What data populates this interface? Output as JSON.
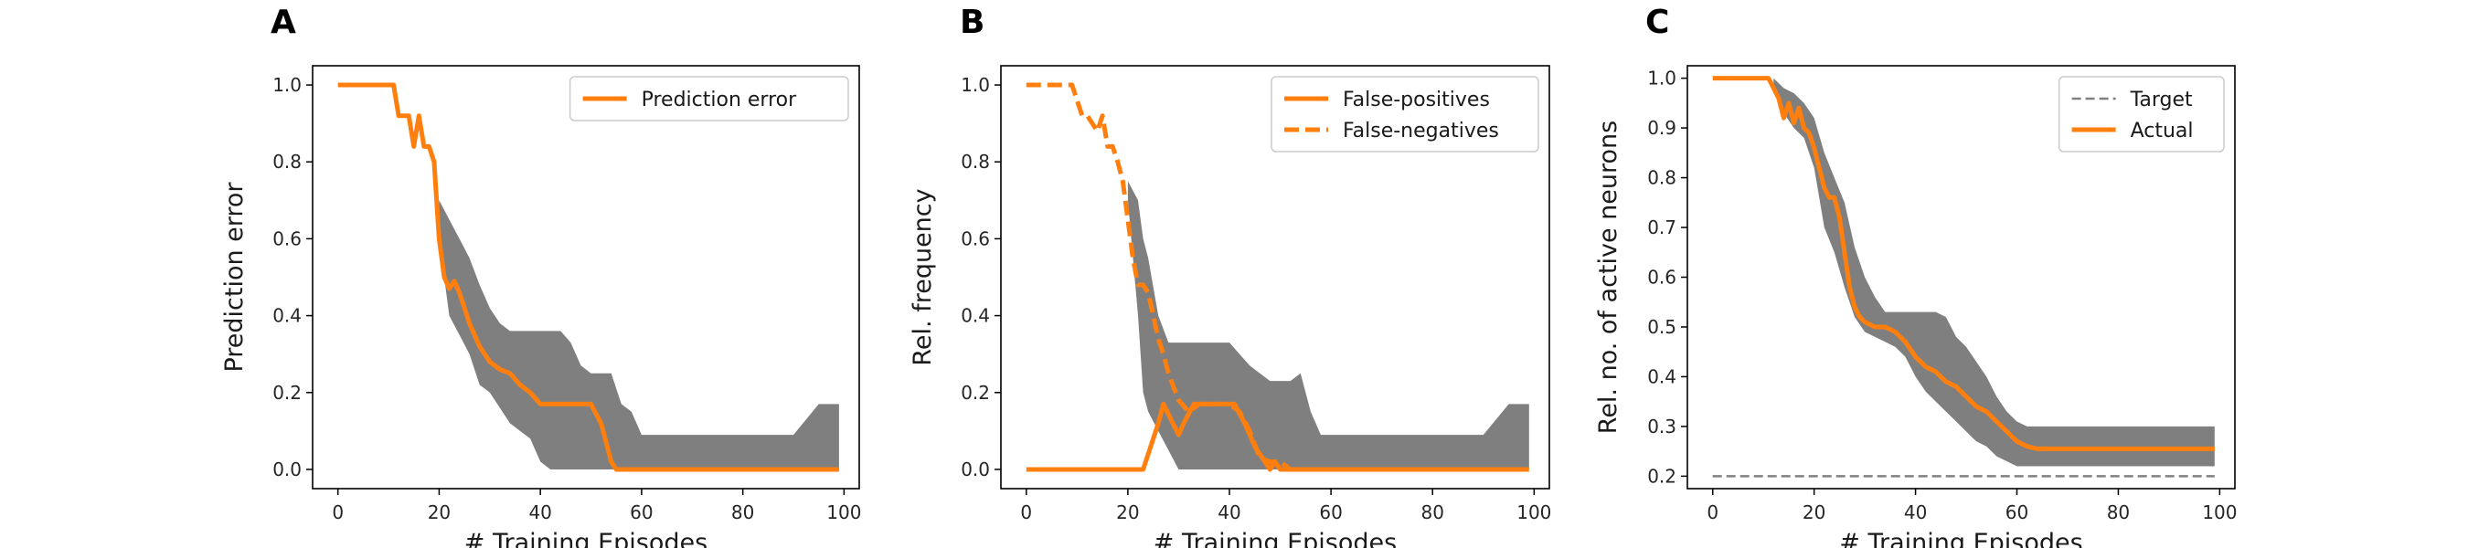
{
  "chart_data": [
    {
      "type": "line",
      "panel": "A",
      "xlabel": "# Training Episodes",
      "ylabel": "Prediction error",
      "xlim": [
        -5,
        103
      ],
      "ylim": [
        -0.05,
        1.05
      ],
      "xticks": [
        0,
        20,
        40,
        60,
        80,
        100
      ],
      "yticks": [
        0.0,
        0.2,
        0.4,
        0.6,
        0.8,
        1.0
      ],
      "ytick_labels": [
        "0.0",
        "0.2",
        "0.4",
        "0.6",
        "0.8",
        "1.0"
      ],
      "grid": false,
      "legend": "top-right",
      "band": {
        "x": [
          20,
          22,
          24,
          26,
          28,
          30,
          32,
          34,
          36,
          38,
          40,
          42,
          44,
          46,
          48,
          50,
          52,
          54,
          56,
          58,
          60,
          65,
          70,
          75,
          80,
          85,
          90,
          95,
          99
        ],
        "lower": [
          0.6,
          0.4,
          0.35,
          0.3,
          0.22,
          0.2,
          0.16,
          0.12,
          0.1,
          0.08,
          0.02,
          0.0,
          0.0,
          0.0,
          0.0,
          0.0,
          0.0,
          0.0,
          0.0,
          0.0,
          0.0,
          0.0,
          0.0,
          0.0,
          0.0,
          0.0,
          0.0,
          0.0,
          0.0
        ],
        "upper": [
          0.7,
          0.65,
          0.6,
          0.55,
          0.48,
          0.42,
          0.38,
          0.36,
          0.36,
          0.36,
          0.36,
          0.36,
          0.36,
          0.33,
          0.27,
          0.25,
          0.25,
          0.25,
          0.17,
          0.15,
          0.09,
          0.09,
          0.09,
          0.09,
          0.09,
          0.09,
          0.09,
          0.17,
          0.17
        ]
      },
      "series": [
        {
          "name": "Prediction error",
          "style": "solid",
          "x": [
            0,
            4,
            8,
            11,
            12,
            14,
            15,
            16,
            17,
            18,
            19,
            20,
            21,
            22,
            23,
            24,
            25,
            26,
            27,
            28,
            29,
            30,
            32,
            34,
            36,
            38,
            40,
            42,
            44,
            46,
            48,
            50,
            52,
            54,
            55,
            60,
            70,
            80,
            90,
            99
          ],
          "y": [
            1.0,
            1.0,
            1.0,
            1.0,
            0.92,
            0.92,
            0.84,
            0.92,
            0.84,
            0.84,
            0.8,
            0.6,
            0.5,
            0.47,
            0.49,
            0.46,
            0.42,
            0.38,
            0.35,
            0.32,
            0.3,
            0.28,
            0.26,
            0.25,
            0.22,
            0.2,
            0.17,
            0.17,
            0.17,
            0.17,
            0.17,
            0.17,
            0.12,
            0.02,
            0.0,
            0.0,
            0.0,
            0.0,
            0.0,
            0.0
          ]
        }
      ]
    },
    {
      "type": "line",
      "panel": "B",
      "xlabel": "# Training Episodes",
      "ylabel": "Rel. frequency",
      "xlim": [
        -5,
        103
      ],
      "ylim": [
        -0.05,
        1.05
      ],
      "xticks": [
        0,
        20,
        40,
        60,
        80,
        100
      ],
      "yticks": [
        0.0,
        0.2,
        0.4,
        0.6,
        0.8,
        1.0
      ],
      "ytick_labels": [
        "0.0",
        "0.2",
        "0.4",
        "0.6",
        "0.8",
        "1.0"
      ],
      "grid": false,
      "legend": "top-right",
      "band": {
        "x": [
          20,
          22,
          23,
          24,
          26,
          28,
          30,
          32,
          34,
          36,
          38,
          40,
          42,
          44,
          46,
          48,
          50,
          52,
          54,
          56,
          58,
          60,
          70,
          80,
          90,
          95,
          99
        ],
        "lower": [
          0.7,
          0.4,
          0.2,
          0.15,
          0.1,
          0.05,
          0.0,
          0.0,
          0.0,
          0.0,
          0.0,
          0.0,
          0.0,
          0.0,
          0.0,
          0.0,
          0.0,
          0.0,
          0.0,
          0.0,
          0.0,
          0.0,
          0.0,
          0.0,
          0.0,
          0.0,
          0.0
        ],
        "upper": [
          0.75,
          0.7,
          0.6,
          0.55,
          0.4,
          0.33,
          0.33,
          0.33,
          0.33,
          0.33,
          0.33,
          0.33,
          0.3,
          0.27,
          0.25,
          0.23,
          0.23,
          0.23,
          0.25,
          0.15,
          0.09,
          0.09,
          0.09,
          0.09,
          0.09,
          0.17,
          0.17
        ]
      },
      "series": [
        {
          "name": "False-positives",
          "style": "solid",
          "x": [
            0,
            10,
            20,
            23,
            25,
            26,
            27,
            30,
            31,
            33,
            35,
            37,
            39,
            41,
            43,
            45,
            46,
            48,
            49,
            50,
            60,
            80,
            99
          ],
          "y": [
            0.0,
            0.0,
            0.0,
            0.0,
            0.08,
            0.12,
            0.17,
            0.09,
            0.12,
            0.17,
            0.17,
            0.17,
            0.17,
            0.17,
            0.12,
            0.06,
            0.04,
            0.0,
            0.02,
            0.0,
            0.0,
            0.0,
            0.0
          ]
        },
        {
          "name": "False-negatives",
          "style": "dashed",
          "x": [
            0,
            6,
            9,
            11,
            12,
            14,
            15,
            16,
            17,
            18,
            19,
            20,
            21,
            22,
            23,
            24,
            25,
            26,
            27,
            28,
            30,
            32,
            34,
            36,
            38,
            40,
            42,
            44,
            46,
            48,
            50,
            52
          ],
          "y": [
            1.0,
            1.0,
            1.0,
            0.92,
            0.92,
            0.88,
            0.92,
            0.84,
            0.84,
            0.8,
            0.75,
            0.65,
            0.55,
            0.48,
            0.48,
            0.46,
            0.4,
            0.34,
            0.3,
            0.25,
            0.18,
            0.15,
            0.17,
            0.17,
            0.17,
            0.17,
            0.15,
            0.1,
            0.03,
            0.02,
            0.02,
            0.0
          ]
        }
      ]
    },
    {
      "type": "line",
      "panel": "C",
      "xlabel": "# Training Episodes",
      "ylabel": "Rel. no. of active neurons",
      "xlim": [
        -5,
        103
      ],
      "ylim": [
        0.175,
        1.025
      ],
      "xticks": [
        0,
        20,
        40,
        60,
        80,
        100
      ],
      "yticks": [
        0.2,
        0.3,
        0.4,
        0.5,
        0.6,
        0.7,
        0.8,
        0.9,
        1.0
      ],
      "ytick_labels": [
        "0.2",
        "0.3",
        "0.4",
        "0.5",
        "0.6",
        "0.7",
        "0.8",
        "0.9",
        "1.0"
      ],
      "grid": false,
      "legend": "top-right",
      "band": {
        "x": [
          12,
          14,
          16,
          18,
          20,
          22,
          24,
          26,
          28,
          30,
          32,
          34,
          36,
          38,
          40,
          42,
          44,
          46,
          48,
          50,
          52,
          54,
          56,
          58,
          60,
          62,
          64,
          66,
          70,
          80,
          90,
          99
        ],
        "lower": [
          0.98,
          0.93,
          0.9,
          0.88,
          0.82,
          0.7,
          0.65,
          0.58,
          0.52,
          0.49,
          0.48,
          0.47,
          0.46,
          0.44,
          0.4,
          0.37,
          0.35,
          0.33,
          0.31,
          0.29,
          0.27,
          0.26,
          0.24,
          0.23,
          0.22,
          0.22,
          0.22,
          0.22,
          0.22,
          0.22,
          0.22,
          0.22
        ],
        "upper": [
          1.0,
          0.98,
          0.97,
          0.95,
          0.92,
          0.85,
          0.8,
          0.75,
          0.66,
          0.6,
          0.56,
          0.53,
          0.53,
          0.53,
          0.53,
          0.53,
          0.53,
          0.52,
          0.48,
          0.46,
          0.43,
          0.4,
          0.36,
          0.33,
          0.31,
          0.3,
          0.3,
          0.3,
          0.3,
          0.3,
          0.3,
          0.3
        ]
      },
      "series": [
        {
          "name": "Target",
          "style": "thin-dashed",
          "x": [
            0,
            99
          ],
          "y": [
            0.2,
            0.2
          ]
        },
        {
          "name": "Actual",
          "style": "solid",
          "x": [
            0,
            4,
            8,
            11,
            12,
            13,
            14,
            15,
            16,
            17,
            18,
            19,
            20,
            21,
            22,
            23,
            24,
            25,
            26,
            27,
            28,
            29,
            30,
            32,
            34,
            36,
            38,
            40,
            42,
            44,
            46,
            48,
            50,
            52,
            54,
            56,
            58,
            60,
            62,
            64,
            66,
            70,
            80,
            90,
            99
          ],
          "y": [
            1.0,
            1.0,
            1.0,
            1.0,
            0.98,
            0.96,
            0.92,
            0.95,
            0.91,
            0.94,
            0.9,
            0.89,
            0.86,
            0.82,
            0.78,
            0.76,
            0.76,
            0.72,
            0.65,
            0.58,
            0.54,
            0.52,
            0.51,
            0.5,
            0.5,
            0.49,
            0.47,
            0.44,
            0.42,
            0.41,
            0.39,
            0.38,
            0.36,
            0.34,
            0.33,
            0.31,
            0.29,
            0.27,
            0.26,
            0.255,
            0.255,
            0.255,
            0.255,
            0.255,
            0.255
          ]
        }
      ]
    }
  ],
  "colors": {
    "line": "#ff7f0e",
    "band": "#7f7f7f",
    "target": "#808080",
    "axis": "#000000"
  }
}
